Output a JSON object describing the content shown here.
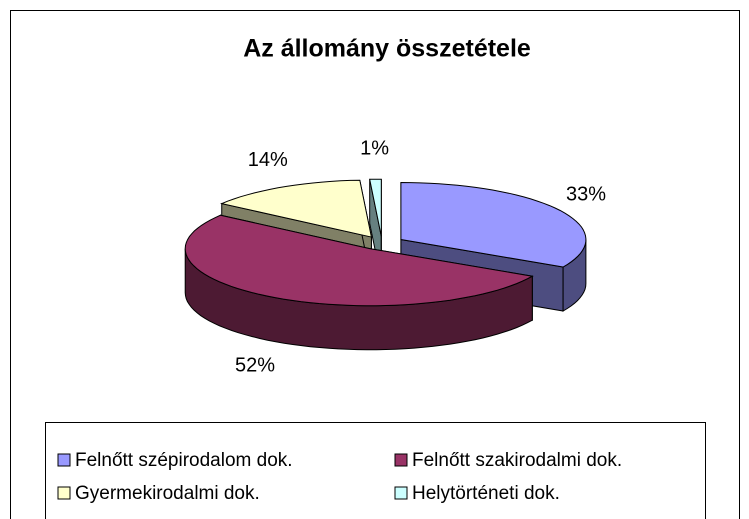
{
  "chart_data": {
    "type": "pie",
    "title": "Az állomány összetétele",
    "categories": [
      "Felnőtt szépirodalom dok.",
      "Felnőtt szakirodalmi dok.",
      "Gyermekirodalmi dok.",
      "Helytörténeti dok."
    ],
    "values": [
      33,
      52,
      14,
      1
    ],
    "value_labels": [
      "33%",
      "52%",
      "14%",
      "1%"
    ],
    "colors": [
      "#9999ff",
      "#993366",
      "#ffffcc",
      "#ccffff"
    ],
    "legend": "bottom"
  }
}
